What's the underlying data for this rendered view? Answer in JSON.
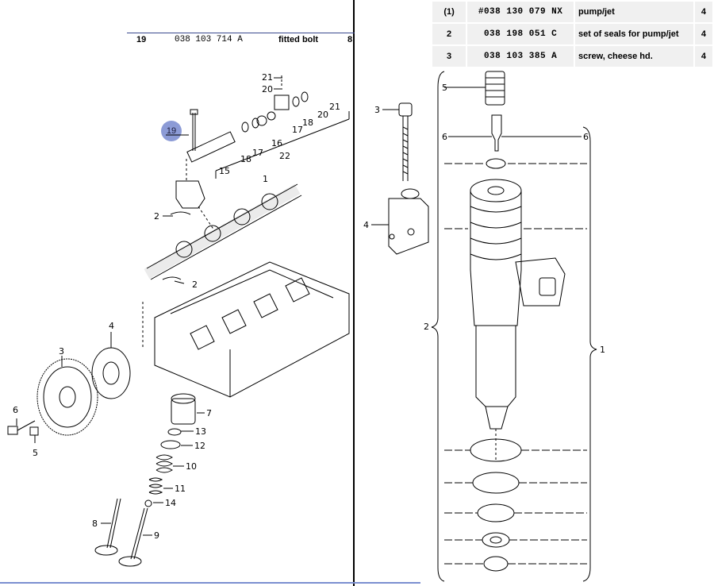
{
  "left_row": {
    "pos": "19",
    "part_no": "038 103 714 A",
    "description": "fitted bolt",
    "qty": "8"
  },
  "parts_table": [
    {
      "pos": "(1)",
      "part_no": "#038 130 079 NX",
      "description": "pump/jet",
      "qty": "4"
    },
    {
      "pos": "2",
      "part_no": "038 198 051 C",
      "description": "set of seals for pump/jet",
      "qty": "4"
    },
    {
      "pos": "3",
      "part_no": "038 103 385 A",
      "description": "screw, cheese hd.",
      "qty": "4"
    }
  ],
  "selected_callout": "19",
  "callouts_left": [
    "21",
    "20",
    "21",
    "20",
    "18",
    "17",
    "16",
    "22",
    "18",
    "17",
    "15",
    "19",
    "1",
    "2",
    "2",
    "4",
    "3",
    "6",
    "5",
    "7",
    "13",
    "12",
    "10",
    "11",
    "14",
    "8",
    "9"
  ],
  "callouts_right": [
    "3",
    "4",
    "5",
    "6",
    "6",
    "2",
    "1"
  ],
  "colors": {
    "accent": "#3b4a8f",
    "badge": "#8c9bd6",
    "table_bg": "#f0f0f0",
    "bottom_line": "#7b8fd0"
  }
}
